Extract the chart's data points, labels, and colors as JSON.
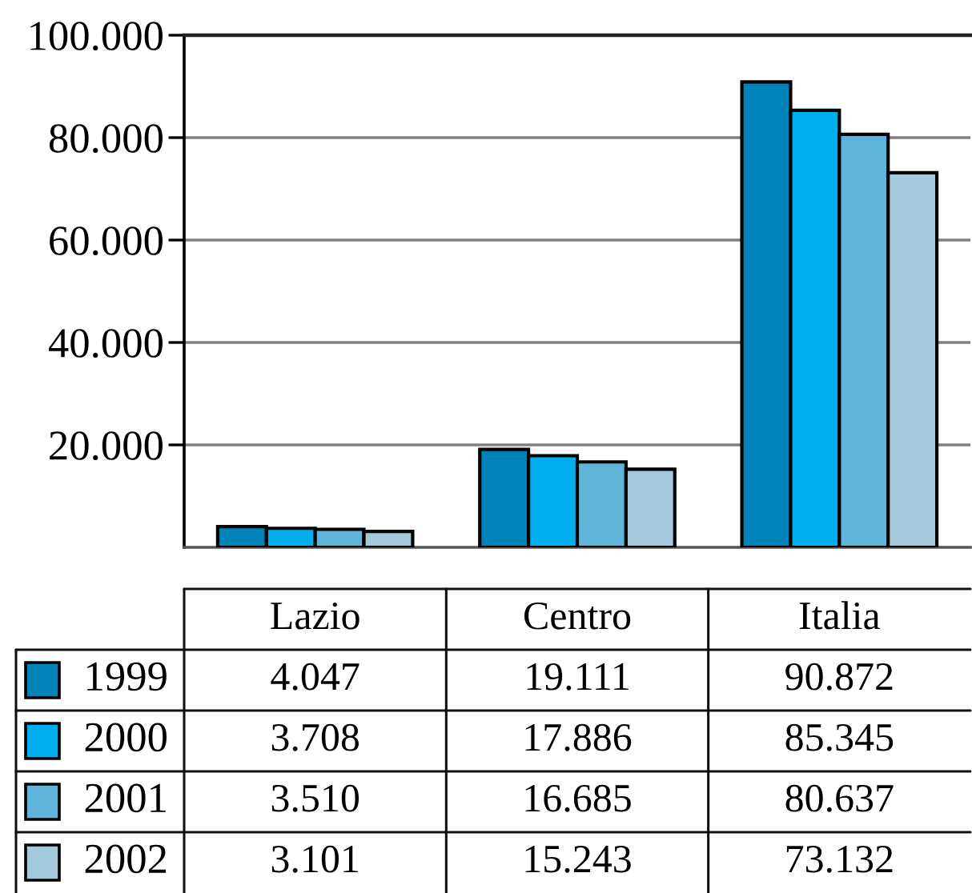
{
  "chart_data": {
    "type": "bar",
    "categories": [
      "Lazio",
      "Centro",
      "Italia"
    ],
    "series": [
      {
        "name": "1999",
        "color": "#0083b8",
        "values": [
          4047,
          19111,
          90872
        ],
        "value_labels": [
          "4.047",
          "19.111",
          "90.872"
        ]
      },
      {
        "name": "2000",
        "color": "#00aeef",
        "values": [
          3708,
          17886,
          85345
        ],
        "value_labels": [
          "3.708",
          "17.886",
          "85.345"
        ]
      },
      {
        "name": "2001",
        "color": "#60b4d9",
        "values": [
          3510,
          16685,
          80637
        ],
        "value_labels": [
          "3.510",
          "16.685",
          "80.637"
        ]
      },
      {
        "name": "2002",
        "color": "#a4c8dc",
        "values": [
          3101,
          15243,
          73132
        ],
        "value_labels": [
          "3.101",
          "15.243",
          "73.132"
        ]
      }
    ],
    "ylim": [
      0,
      100000
    ],
    "yticks": [
      {
        "value": 20000,
        "label": "20.000"
      },
      {
        "value": 40000,
        "label": "40.000"
      },
      {
        "value": 60000,
        "label": "60.000"
      },
      {
        "value": 80000,
        "label": "80.000"
      },
      {
        "value": 100000,
        "label": "100.000"
      }
    ],
    "grid": "y",
    "legend": "bottom"
  }
}
